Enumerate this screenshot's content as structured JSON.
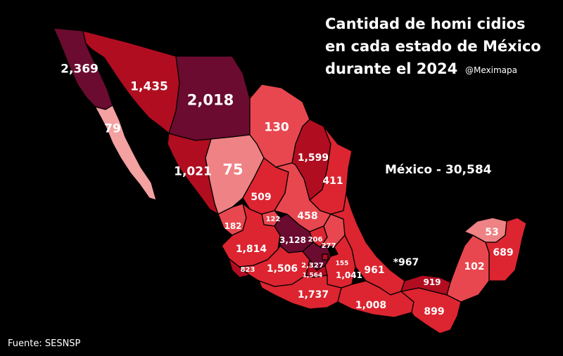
{
  "title_lines": [
    "Cantidad de homi cidios",
    "en cada estado de México",
    "durante el 2024"
  ],
  "credit": "@Meximapa",
  "national_total": "México - 30,584",
  "source": "Fuente: SESNSP",
  "colors": {
    "background": "#000000",
    "very_high": "#6b0b2f",
    "high": "#b10d20",
    "mid": "#dc2530",
    "mid_low": "#e8474f",
    "low": "#ee8284",
    "very_low": "#f4a1a2",
    "border": "#000000"
  },
  "states": [
    {
      "name": "Baja California",
      "value": "2,369"
    },
    {
      "name": "Sonora",
      "value": "1,435"
    },
    {
      "name": "Chihuahua",
      "value": "2,018"
    },
    {
      "name": "Baja California Sur",
      "value": "79"
    },
    {
      "name": "Coahuila",
      "value": "130"
    },
    {
      "name": "Durango",
      "value": "75"
    },
    {
      "name": "Sinaloa",
      "value": "1,021"
    },
    {
      "name": "Nuevo León",
      "value": "1,599"
    },
    {
      "name": "Tamaulipas",
      "value": "411"
    },
    {
      "name": "Zacatecas",
      "value": "509"
    },
    {
      "name": "San Luis Potosí",
      "value": "458"
    },
    {
      "name": "Aguascalientes",
      "value": "122"
    },
    {
      "name": "Nayarit",
      "value": "182"
    },
    {
      "name": "Jalisco",
      "value": "1,814"
    },
    {
      "name": "Guanajuato",
      "value": "3,128"
    },
    {
      "name": "Querétaro",
      "value": "206"
    },
    {
      "name": "Hidalgo",
      "value": "277"
    },
    {
      "name": "Colima",
      "value": "823"
    },
    {
      "name": "Michoacán",
      "value": "1,506"
    },
    {
      "name": "Estado de México",
      "value": "2,327"
    },
    {
      "name": "Tlaxcala",
      "value": "155"
    },
    {
      "name": "Morelos",
      "value": "1,564"
    },
    {
      "name": "Puebla",
      "value": "1,041"
    },
    {
      "name": "Veracruz",
      "value": "961"
    },
    {
      "name": "Ciudad de México",
      "value": "*967"
    },
    {
      "name": "Guerrero",
      "value": "1,737"
    },
    {
      "name": "Oaxaca",
      "value": "1,008"
    },
    {
      "name": "Tabasco",
      "value": "919"
    },
    {
      "name": "Chiapas",
      "value": "899"
    },
    {
      "name": "Campeche",
      "value": "102"
    },
    {
      "name": "Yucatán",
      "value": "53"
    },
    {
      "name": "Quintana Roo",
      "value": "689"
    }
  ]
}
